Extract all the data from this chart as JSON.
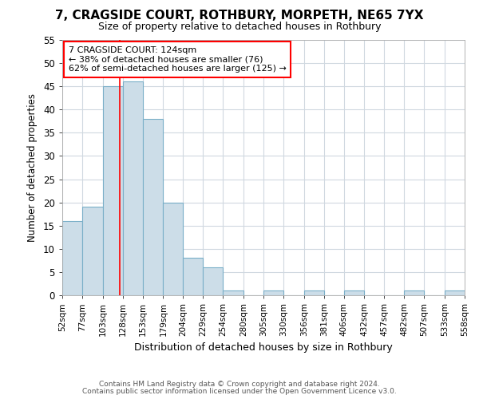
{
  "title1": "7, CRAGSIDE COURT, ROTHBURY, MORPETH, NE65 7YX",
  "title2": "Size of property relative to detached houses in Rothbury",
  "xlabel": "Distribution of detached houses by size in Rothbury",
  "ylabel": "Number of detached properties",
  "footnote1": "Contains HM Land Registry data © Crown copyright and database right 2024.",
  "footnote2": "Contains public sector information licensed under the Open Government Licence v3.0.",
  "annotation_line1": "7 CRAGSIDE COURT: 124sqm",
  "annotation_line2": "← 38% of detached houses are smaller (76)",
  "annotation_line3": "62% of semi-detached houses are larger (125) →",
  "bin_edges": [
    52,
    77,
    103,
    128,
    153,
    179,
    204,
    229,
    254,
    280,
    305,
    330,
    356,
    381,
    406,
    432,
    457,
    482,
    507,
    533,
    558
  ],
  "bar_values": [
    16,
    19,
    45,
    46,
    38,
    20,
    8,
    6,
    1,
    0,
    1,
    0,
    1,
    0,
    1,
    0,
    0,
    1,
    0,
    1
  ],
  "bar_color": "#ccdde8",
  "bar_edge_color": "#7aafc8",
  "bar_edge_width": 0.8,
  "vline_color": "red",
  "vline_x": 124,
  "ylim": [
    0,
    55
  ],
  "yticks": [
    0,
    5,
    10,
    15,
    20,
    25,
    30,
    35,
    40,
    45,
    50,
    55
  ],
  "bg_color": "#ffffff",
  "plot_bg_color": "#ffffff",
  "grid_color": "#d0d8e0",
  "annotation_box_facecolor": "#ffffff",
  "annotation_box_edgecolor": "red"
}
